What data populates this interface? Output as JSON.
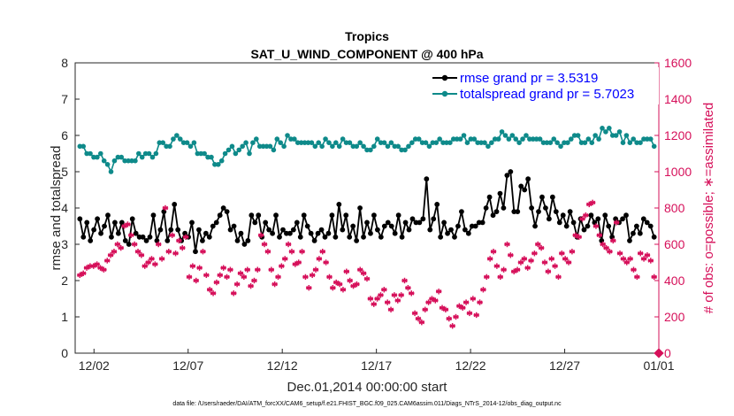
{
  "chart_data": {
    "type": "line",
    "title": "Tropics",
    "subtitle": "SAT_U_WIND_COMPONENT @ 400 hPa",
    "xlabel": "Dec.01,2014 00:00:00 start",
    "ylabel": "rmse and totalspread",
    "ylabel_right": "# of obs: o=possible; ∗=assimilated",
    "footnote": "data file: /Users/raeder/DAI/ATM_forcXX/CAM6_setup/f.e21.FHIST_BGC.f09_025.CAM6assim.011/Diags_NTrS_2014-12/obs_diag_output.nc",
    "xlim": [
      1,
      32
    ],
    "ylim": [
      0,
      8
    ],
    "ylim_right": [
      0,
      1600
    ],
    "x_ticks": [
      2,
      7,
      12,
      17,
      22,
      27,
      32
    ],
    "x_tick_labels": [
      "12/02",
      "12/07",
      "12/12",
      "12/17",
      "12/22",
      "12/27",
      "01/01"
    ],
    "y_ticks": [
      0,
      1,
      2,
      3,
      4,
      5,
      6,
      7,
      8
    ],
    "y_ticks_right": [
      0,
      200,
      400,
      600,
      800,
      1000,
      1200,
      1400,
      1600
    ],
    "series": [
      {
        "name": "rmse grand pr = 3.5319",
        "color": "#000000",
        "axis": "left",
        "values": [
          3.7,
          3.2,
          3.6,
          3.1,
          3.4,
          3.7,
          3.3,
          3.5,
          3.8,
          3.2,
          3.6,
          3.3,
          3.6,
          3.1,
          3.0,
          3.7,
          3.3,
          3.2,
          3.2,
          3.1,
          3.2,
          3.8,
          3.1,
          3.4,
          3.9,
          3.1,
          3.4,
          4.1,
          3.4,
          3.1,
          3.3,
          3.2,
          3.6,
          2.8,
          3.4,
          3.1,
          3.3,
          3.2,
          3.5,
          3.6,
          3.8,
          4.0,
          3.9,
          3.4,
          3.5,
          3.1,
          3.3,
          3.0,
          3.1,
          3.8,
          3.6,
          3.8,
          3.2,
          3.6,
          3.4,
          3.3,
          3.8,
          3.2,
          3.4,
          3.3,
          3.3,
          3.4,
          3.6,
          3.2,
          3.8,
          3.5,
          3.3,
          3.1,
          3.3,
          3.4,
          3.2,
          3.3,
          3.8,
          3.2,
          4.1,
          3.4,
          3.8,
          3.2,
          3.5,
          3.1,
          4.0,
          3.2,
          3.6,
          3.3,
          3.8,
          3.4,
          3.2,
          3.5,
          3.6,
          3.5,
          3.3,
          3.8,
          3.2,
          3.6,
          3.4,
          3.7,
          3.6,
          3.6,
          3.7,
          4.8,
          3.4,
          3.7,
          4.1,
          3.2,
          3.6,
          3.3,
          3.4,
          3.2,
          3.5,
          3.9,
          3.4,
          3.3,
          3.5,
          3.5,
          3.6,
          3.6,
          4.0,
          4.3,
          3.8,
          3.9,
          4.4,
          4.0,
          4.9,
          5.0,
          3.9,
          3.9,
          4.6,
          4.5,
          4.8,
          4.0,
          3.5,
          3.9,
          4.3,
          4.0,
          3.7,
          4.3,
          3.9,
          3.6,
          3.8,
          3.5,
          3.9,
          3.6,
          3.2,
          3.7,
          3.4,
          3.5,
          3.8,
          3.6,
          3.7,
          3.1,
          3.8,
          3.5,
          3.2,
          3.7,
          3.6,
          3.7,
          3.8,
          3.1,
          3.3,
          3.5,
          3.3,
          3.7,
          3.6,
          3.5,
          3.2
        ]
      },
      {
        "name": "totalspread grand pr = 5.7023",
        "color": "#0e8a8a",
        "axis": "left",
        "values": [
          5.7,
          5.7,
          5.5,
          5.5,
          5.4,
          5.4,
          5.5,
          5.3,
          5.2,
          5.0,
          5.3,
          5.4,
          5.4,
          5.3,
          5.3,
          5.3,
          5.3,
          5.5,
          5.4,
          5.5,
          5.5,
          5.4,
          5.5,
          5.8,
          5.8,
          5.7,
          5.7,
          5.9,
          6.0,
          5.9,
          5.8,
          5.8,
          5.7,
          5.8,
          5.5,
          5.5,
          5.5,
          5.4,
          5.4,
          5.2,
          5.2,
          5.3,
          5.5,
          5.6,
          5.7,
          5.5,
          5.6,
          5.7,
          5.8,
          5.5,
          5.8,
          5.9,
          5.7,
          5.7,
          5.7,
          5.7,
          5.6,
          5.9,
          5.8,
          5.7,
          6.0,
          5.9,
          5.9,
          5.8,
          5.8,
          5.8,
          5.8,
          5.8,
          5.7,
          5.8,
          5.7,
          5.9,
          5.8,
          5.7,
          5.8,
          5.7,
          5.9,
          5.8,
          5.8,
          5.7,
          5.7,
          5.8,
          5.7,
          5.6,
          5.6,
          5.7,
          5.9,
          5.8,
          5.8,
          5.7,
          5.8,
          5.7,
          5.7,
          5.6,
          5.6,
          5.7,
          5.8,
          5.9,
          5.9,
          5.8,
          5.8,
          5.7,
          5.8,
          5.8,
          5.9,
          5.8,
          5.8,
          5.8,
          5.9,
          5.9,
          5.9,
          6.0,
          5.8,
          5.9,
          5.9,
          5.8,
          5.8,
          5.8,
          5.7,
          5.8,
          5.9,
          5.9,
          6.1,
          6.0,
          5.9,
          6.0,
          5.9,
          5.8,
          5.9,
          6.0,
          5.9,
          5.9,
          5.9,
          5.9,
          5.8,
          5.8,
          5.8,
          5.9,
          5.8,
          5.7,
          5.8,
          5.8,
          5.9,
          6.0,
          6.0,
          5.8,
          5.8,
          5.9,
          5.8,
          6.0,
          5.9,
          6.2,
          6.1,
          6.2,
          6.0,
          6.0,
          6.1,
          5.8,
          6.0,
          5.8,
          5.9,
          5.8,
          5.8,
          5.9,
          5.9,
          5.9,
          5.7
        ]
      },
      {
        "name": "# of obs assimilated",
        "color": "#d6105a",
        "axis": "right",
        "values": [
          430,
          440,
          470,
          480,
          480,
          490,
          470,
          460,
          510,
          540,
          560,
          600,
          580,
          700,
          710,
          650,
          600,
          560,
          540,
          480,
          500,
          520,
          490,
          600,
          520,
          800,
          560,
          650,
          550,
          620,
          580,
          640,
          420,
          480,
          400,
          470,
          560,
          430,
          350,
          330,
          390,
          430,
          470,
          420,
          460,
          330,
          380,
          440,
          420,
          460,
          370,
          400,
          460,
          650,
          600,
          560,
          460,
          380,
          420,
          480,
          520,
          600,
          560,
          490,
          500,
          560,
          420,
          360,
          430,
          460,
          520,
          560,
          500,
          420,
          360,
          390,
          380,
          350,
          450,
          400,
          370,
          380,
          460,
          440,
          410,
          300,
          270,
          300,
          320,
          350,
          280,
          240,
          320,
          290,
          320,
          400,
          360,
          330,
          220,
          190,
          170,
          240,
          280,
          300,
          290,
          340,
          250,
          240,
          190,
          150,
          200,
          260,
          250,
          280,
          220,
          300,
          210,
          280,
          350,
          420,
          520,
          560,
          480,
          420,
          460,
          600,
          540,
          450,
          460,
          500,
          520,
          470,
          510,
          550,
          600,
          580,
          500,
          450,
          520,
          480,
          420,
          550,
          520,
          500,
          560,
          650,
          640,
          740,
          760,
          820,
          830,
          700,
          650,
          600,
          580,
          560,
          620,
          720,
          550,
          520,
          500,
          520,
          460,
          420,
          550,
          520,
          540,
          510,
          420
        ]
      }
    ],
    "possible_marker": {
      "x": 32,
      "value": 0
    }
  }
}
